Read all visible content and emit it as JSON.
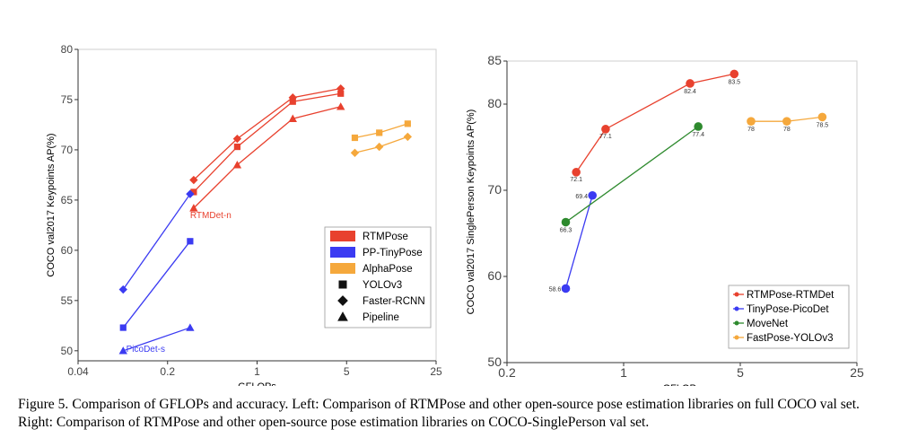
{
  "caption": {
    "label": "Figure 5.",
    "text": "Comparison of GFLOPs and accuracy. Left: Comparison of RTMPose and other open-source pose estimation libraries on full COCO val set. Right: Comparison of RTMPose and other open-source pose estimation libraries on COCO-SinglePerson val set."
  },
  "chart_data": [
    {
      "type": "line",
      "xscale": "log",
      "xlabel": "GFLOPs",
      "ylabel": "COCO val2017 Keypoints AP(%)",
      "xlim": [
        0.04,
        25
      ],
      "ylim": [
        49,
        80
      ],
      "xticks": [
        {
          "value": 0.04,
          "label": "0.04"
        },
        {
          "value": 0.2,
          "label": "0.2"
        },
        {
          "value": 1,
          "label": "1"
        },
        {
          "value": 5,
          "label": "5"
        },
        {
          "value": 25,
          "label": "25"
        }
      ],
      "yticks": [
        {
          "value": 50,
          "label": "50"
        },
        {
          "value": 55,
          "label": "55"
        },
        {
          "value": 60,
          "label": "60"
        },
        {
          "value": 65,
          "label": "65"
        },
        {
          "value": 70,
          "label": "70"
        },
        {
          "value": 75,
          "label": "75"
        },
        {
          "value": 80,
          "label": "80"
        }
      ],
      "grid": false,
      "legend": {
        "position": "bottom-right",
        "entries": [
          {
            "label": "RTMPose",
            "kind": "color",
            "color": "#e8412e"
          },
          {
            "label": "PP-TinyPose",
            "kind": "color",
            "color": "#3b3bf2"
          },
          {
            "label": "AlphaPose",
            "kind": "color",
            "color": "#f5a83c"
          },
          {
            "label": "YOLOv3",
            "kind": "marker",
            "marker": "square"
          },
          {
            "label": "Faster-RCNN",
            "kind": "marker",
            "marker": "diamond"
          },
          {
            "label": "Pipeline",
            "kind": "marker",
            "marker": "triangle"
          }
        ]
      },
      "annotations": [
        {
          "text": "RTMDet-n",
          "x": 0.3,
          "y": 63.2,
          "color": "#e8412e"
        },
        {
          "text": "PicoDet-s",
          "x": 0.095,
          "y": 49.9,
          "color": "#3b3bf2"
        }
      ],
      "series": [
        {
          "library": "RTMPose",
          "detector": "Faster-RCNN",
          "color": "#e8412e",
          "marker": "diamond",
          "x": [
            0.32,
            0.7,
            1.9,
            4.5
          ],
          "y": [
            67.0,
            71.1,
            75.2,
            76.1
          ]
        },
        {
          "library": "RTMPose",
          "detector": "YOLOv3",
          "color": "#e8412e",
          "marker": "square",
          "x": [
            0.32,
            0.7,
            1.9,
            4.5
          ],
          "y": [
            65.8,
            70.3,
            74.8,
            75.6
          ]
        },
        {
          "library": "RTMPose",
          "detector": "Pipeline",
          "color": "#e8412e",
          "marker": "triangle",
          "x": [
            0.32,
            0.7,
            1.9,
            4.5
          ],
          "y": [
            64.2,
            68.5,
            73.1,
            74.3
          ]
        },
        {
          "library": "PP-TinyPose",
          "detector": "Faster-RCNN",
          "color": "#3b3bf2",
          "marker": "diamond",
          "x": [
            0.09,
            0.3
          ],
          "y": [
            56.1,
            65.6
          ]
        },
        {
          "library": "PP-TinyPose",
          "detector": "YOLOv3",
          "color": "#3b3bf2",
          "marker": "square",
          "x": [
            0.09,
            0.3
          ],
          "y": [
            52.3,
            60.9
          ]
        },
        {
          "library": "PP-TinyPose",
          "detector": "Pipeline",
          "color": "#3b3bf2",
          "marker": "triangle",
          "x": [
            0.09,
            0.3
          ],
          "y": [
            50.0,
            52.3
          ]
        },
        {
          "library": "AlphaPose",
          "detector": "YOLOv3",
          "color": "#f5a83c",
          "marker": "square",
          "x": [
            5.8,
            9.0,
            15.0
          ],
          "y": [
            71.2,
            71.7,
            72.6
          ]
        },
        {
          "library": "AlphaPose",
          "detector": "Faster-RCNN",
          "color": "#f5a83c",
          "marker": "diamond",
          "x": [
            5.8,
            9.0,
            15.0
          ],
          "y": [
            69.7,
            70.3,
            71.3
          ]
        }
      ]
    },
    {
      "type": "line",
      "xscale": "log",
      "xlabel": "GFLOPs",
      "ylabel": "COCO val2017 SinglePerson Keypoints AP(%)",
      "xlim": [
        0.2,
        25
      ],
      "ylim": [
        50,
        85
      ],
      "xticks": [
        {
          "value": 0.2,
          "label": "0.2"
        },
        {
          "value": 1,
          "label": "1"
        },
        {
          "value": 5,
          "label": "5"
        },
        {
          "value": 25,
          "label": "25"
        }
      ],
      "yticks": [
        {
          "value": 50,
          "label": "50"
        },
        {
          "value": 60,
          "label": "60"
        },
        {
          "value": 70,
          "label": "70"
        },
        {
          "value": 80,
          "label": "80"
        },
        {
          "value": 85,
          "label": "85"
        }
      ],
      "grid": false,
      "legend": {
        "position": "bottom-right",
        "entries": [
          {
            "label": "RTMPose-RTMDet",
            "color": "#e8412e"
          },
          {
            "label": "TinyPose-PicoDet",
            "color": "#3b3bf2"
          },
          {
            "label": "MoveNet",
            "color": "#2e8a2e"
          },
          {
            "label": "FastPose-YOLOv3",
            "color": "#f5a83c"
          }
        ]
      },
      "series": [
        {
          "name": "RTMPose-RTMDet",
          "color": "#e8412e",
          "x": [
            0.52,
            0.78,
            2.5,
            4.6
          ],
          "y": [
            72.1,
            77.1,
            82.4,
            83.5
          ],
          "labels": [
            "72.1",
            "77.1",
            "82.4",
            "83.5"
          ]
        },
        {
          "name": "TinyPose-PicoDet",
          "color": "#3b3bf2",
          "x": [
            0.45,
            0.65
          ],
          "y": [
            58.6,
            69.4
          ],
          "labels": [
            "58.6",
            "69.4"
          ]
        },
        {
          "name": "MoveNet",
          "color": "#2e8a2e",
          "x": [
            0.45,
            2.8
          ],
          "y": [
            66.3,
            77.4
          ],
          "labels": [
            "66.3",
            "77.4"
          ]
        },
        {
          "name": "FastPose-YOLOv3",
          "color": "#f5a83c",
          "x": [
            5.8,
            9.5,
            15.5
          ],
          "y": [
            78.0,
            78.0,
            78.5
          ],
          "labels": [
            "78",
            "78",
            "78.5"
          ]
        }
      ]
    }
  ]
}
